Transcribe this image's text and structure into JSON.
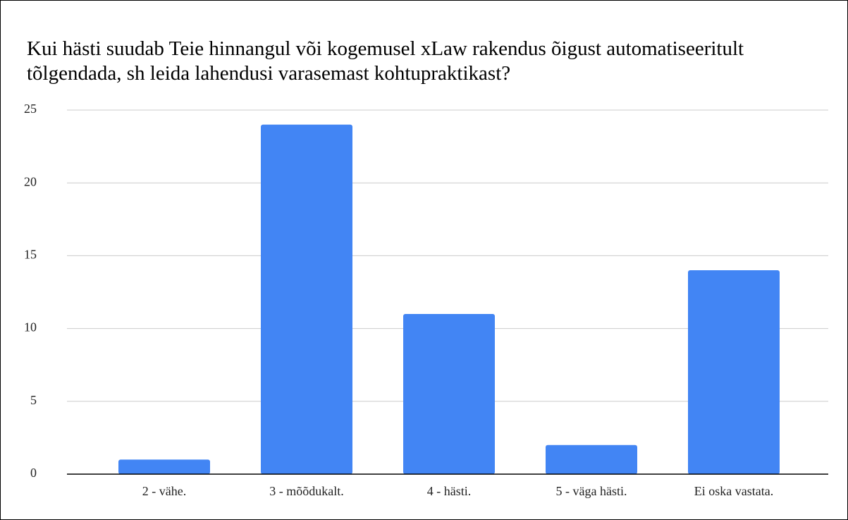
{
  "chart_data": {
    "type": "bar",
    "title": "Kui hästi suudab Teie hinnangul või kogemusel xLaw rakendus õigust automatiseeritult tõlgendada, sh leida lahendusi varasemast kohtupraktikast?",
    "categories": [
      "2 - vähe.",
      "3 - mõõdukalt.",
      "4 - hästi.",
      "5 - väga hästi.",
      "Ei oska vastata."
    ],
    "values": [
      1,
      24,
      11,
      2,
      14
    ],
    "color": "#4285f4",
    "ylim": [
      0,
      25
    ],
    "yticks": [
      0,
      5,
      10,
      15,
      20,
      25
    ],
    "grid": true
  }
}
